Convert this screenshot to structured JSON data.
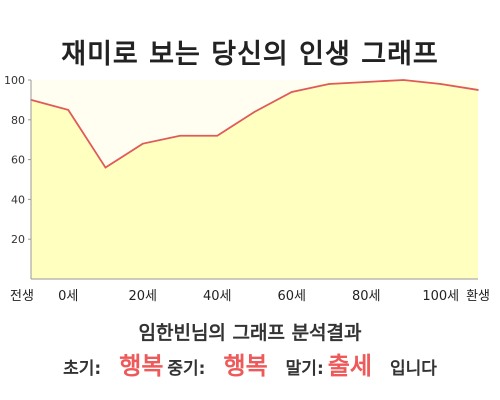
{
  "title": "재미로 보는 당신의 인생 그래프",
  "chart_data": {
    "type": "area",
    "title": "재미로 보는 당신의 인생 그래프",
    "x_labels": [
      "전생",
      "0세",
      "20세",
      "40세",
      "60세",
      "80세",
      "100세",
      "환생"
    ],
    "x": [
      "전생",
      "0세",
      "10세",
      "20세",
      "30세",
      "40세",
      "50세",
      "60세",
      "70세",
      "80세",
      "90세",
      "100세",
      "환생"
    ],
    "values": [
      90,
      85,
      56,
      68,
      72,
      72,
      84,
      94,
      98,
      99,
      100,
      98,
      95
    ],
    "y_ticks": [
      20,
      40,
      60,
      80,
      100
    ],
    "ylim": [
      0,
      100
    ],
    "grid": false,
    "colors": {
      "fill": "#ffffc0",
      "line": "#e05a5a",
      "plot_bg": "#fffef0",
      "axis": "#999999",
      "highlight": "#ee5a5a"
    }
  },
  "result": {
    "title": "임한빈님의 그래프 분석결과",
    "early_label": "초기:",
    "early_value": "행복",
    "mid_label": "중기:",
    "mid_value": "행복",
    "late_label": "말기:",
    "late_value": "출세",
    "ending": "입니다"
  }
}
